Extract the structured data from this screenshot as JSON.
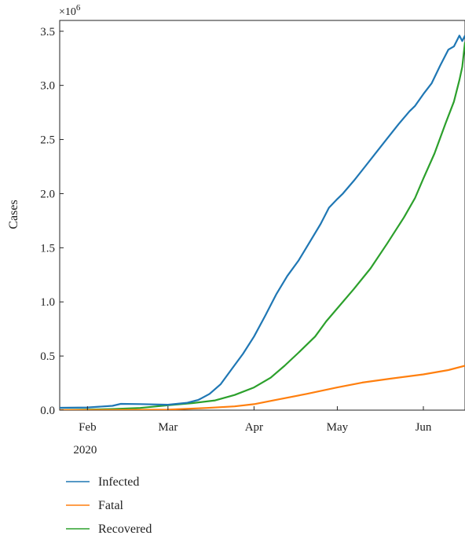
{
  "chart_data": {
    "type": "line",
    "ylabel": "Cases",
    "y_multiplier": "×10",
    "y_multiplier_exponent": "6",
    "ylim": [
      0,
      3.6
    ],
    "y_ticks": [
      {
        "value": 0.0,
        "label": "0.0"
      },
      {
        "value": 0.5,
        "label": "0.5"
      },
      {
        "value": 1.0,
        "label": "1.0"
      },
      {
        "value": 1.5,
        "label": "1.5"
      },
      {
        "value": 2.0,
        "label": "2.0"
      },
      {
        "value": 2.5,
        "label": "2.5"
      },
      {
        "value": 3.0,
        "label": "3.0"
      },
      {
        "value": 3.5,
        "label": "3.5"
      }
    ],
    "xlim": [
      "2020-01-22",
      "2020-06-10"
    ],
    "x_ticks": [
      {
        "date": "2020-02-01",
        "label": "Feb",
        "sublabel": "2020"
      },
      {
        "date": "2020-03-01",
        "label": "Mar",
        "sublabel": ""
      },
      {
        "date": "2020-04-01",
        "label": "Apr",
        "sublabel": ""
      },
      {
        "date": "2020-05-01",
        "label": "May",
        "sublabel": ""
      },
      {
        "date": "2020-06-01",
        "label": "Jun",
        "sublabel": ""
      }
    ],
    "legend_position": "bottom",
    "series": [
      {
        "name": "Infected",
        "color": "#1f77b4",
        "points": [
          [
            "2020-01-22",
            0.022
          ],
          [
            "2020-02-01",
            0.025
          ],
          [
            "2020-02-10",
            0.04
          ],
          [
            "2020-02-13",
            0.058
          ],
          [
            "2020-02-20",
            0.056
          ],
          [
            "2020-03-01",
            0.05
          ],
          [
            "2020-03-08",
            0.068
          ],
          [
            "2020-03-12",
            0.095
          ],
          [
            "2020-03-16",
            0.15
          ],
          [
            "2020-03-20",
            0.24
          ],
          [
            "2020-03-24",
            0.38
          ],
          [
            "2020-03-28",
            0.52
          ],
          [
            "2020-04-01",
            0.68
          ],
          [
            "2020-04-05",
            0.87
          ],
          [
            "2020-04-09",
            1.07
          ],
          [
            "2020-04-13",
            1.24
          ],
          [
            "2020-04-17",
            1.38
          ],
          [
            "2020-04-21",
            1.55
          ],
          [
            "2020-04-25",
            1.72
          ],
          [
            "2020-04-28",
            1.87
          ],
          [
            "2020-05-01",
            1.95
          ],
          [
            "2020-05-03",
            2.0
          ],
          [
            "2020-05-07",
            2.12
          ],
          [
            "2020-05-11",
            2.25
          ],
          [
            "2020-05-15",
            2.38
          ],
          [
            "2020-05-19",
            2.51
          ],
          [
            "2020-05-23",
            2.64
          ],
          [
            "2020-05-27",
            2.76
          ],
          [
            "2020-05-29",
            2.81
          ],
          [
            "2020-06-01",
            2.92
          ],
          [
            "2020-06-04",
            3.02
          ],
          [
            "2020-06-07",
            3.18
          ],
          [
            "2020-06-10",
            3.33
          ],
          [
            "2020-06-12",
            3.36
          ],
          [
            "2020-06-14",
            3.46
          ],
          [
            "2020-06-15",
            3.41
          ],
          [
            "2020-06-16",
            3.46
          ]
        ]
      },
      {
        "name": "Fatal",
        "color": "#ff7f0e",
        "points": [
          [
            "2020-01-22",
            0.0
          ],
          [
            "2020-02-15",
            0.002
          ],
          [
            "2020-03-01",
            0.005
          ],
          [
            "2020-03-15",
            0.02
          ],
          [
            "2020-03-25",
            0.035
          ],
          [
            "2020-04-01",
            0.055
          ],
          [
            "2020-04-10",
            0.1
          ],
          [
            "2020-04-20",
            0.15
          ],
          [
            "2020-05-01",
            0.21
          ],
          [
            "2020-05-10",
            0.255
          ],
          [
            "2020-05-20",
            0.29
          ],
          [
            "2020-06-01",
            0.33
          ],
          [
            "2020-06-10",
            0.37
          ],
          [
            "2020-06-16",
            0.41
          ]
        ]
      },
      {
        "name": "Recovered",
        "color": "#2ca02c",
        "points": [
          [
            "2020-01-22",
            0.0
          ],
          [
            "2020-02-10",
            0.01
          ],
          [
            "2020-02-20",
            0.02
          ],
          [
            "2020-03-01",
            0.045
          ],
          [
            "2020-03-10",
            0.065
          ],
          [
            "2020-03-18",
            0.09
          ],
          [
            "2020-03-25",
            0.14
          ],
          [
            "2020-04-01",
            0.21
          ],
          [
            "2020-04-07",
            0.3
          ],
          [
            "2020-04-12",
            0.41
          ],
          [
            "2020-04-17",
            0.53
          ],
          [
            "2020-04-23",
            0.68
          ],
          [
            "2020-04-27",
            0.82
          ],
          [
            "2020-05-01",
            0.94
          ],
          [
            "2020-05-07",
            1.12
          ],
          [
            "2020-05-13",
            1.31
          ],
          [
            "2020-05-19",
            1.54
          ],
          [
            "2020-05-25",
            1.78
          ],
          [
            "2020-05-29",
            1.96
          ],
          [
            "2020-06-01",
            2.14
          ],
          [
            "2020-06-05",
            2.37
          ],
          [
            "2020-06-09",
            2.65
          ],
          [
            "2020-06-12",
            2.85
          ],
          [
            "2020-06-14",
            3.05
          ],
          [
            "2020-06-15",
            3.17
          ],
          [
            "2020-06-16",
            3.4
          ]
        ]
      }
    ]
  }
}
